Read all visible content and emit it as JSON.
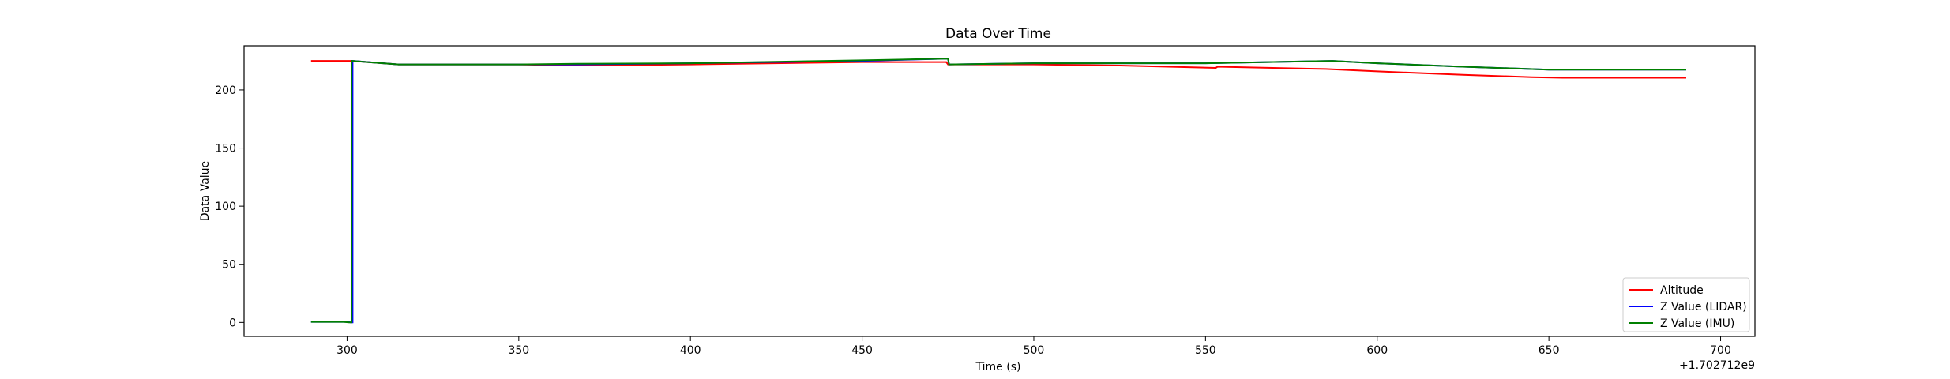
{
  "chart_data": {
    "type": "line",
    "title": "Data Over Time",
    "xlabel": "Time (s)",
    "ylabel": "Data Value",
    "x_offset_label": "+1.702712e9",
    "xlim": [
      270,
      710
    ],
    "ylim": [
      -12,
      238
    ],
    "x_ticks": [
      300,
      350,
      400,
      450,
      500,
      550,
      600,
      650,
      700
    ],
    "x_tick_labels": [
      "300",
      "350",
      "400",
      "450",
      "500",
      "550",
      "600",
      "650",
      "700"
    ],
    "y_ticks": [
      0,
      50,
      100,
      150,
      200
    ],
    "y_tick_labels": [
      "0",
      "50",
      "100",
      "150",
      "200"
    ],
    "grid": false,
    "legend_position": "lower-right",
    "series": [
      {
        "name": "Altitude",
        "color": "#ff0000",
        "points": [
          [
            289.5,
            225
          ],
          [
            301.5,
            225
          ],
          [
            315,
            222
          ],
          [
            350,
            222
          ],
          [
            367,
            221
          ],
          [
            400,
            222
          ],
          [
            450,
            224
          ],
          [
            474.5,
            224
          ],
          [
            475,
            222
          ],
          [
            500,
            222
          ],
          [
            525,
            221
          ],
          [
            553,
            219
          ],
          [
            553.5,
            220
          ],
          [
            585,
            218
          ],
          [
            600,
            216
          ],
          [
            625,
            213
          ],
          [
            645,
            211
          ],
          [
            654,
            210.5
          ],
          [
            675,
            210.5
          ],
          [
            690,
            210.5
          ]
        ]
      },
      {
        "name": "Z Value (LIDAR)",
        "color": "#0000ff",
        "points": [
          [
            289.5,
            0.5
          ],
          [
            300,
            0.5
          ],
          [
            301,
            0
          ],
          [
            301.6,
            0
          ],
          [
            301.6,
            225
          ],
          [
            315,
            222
          ],
          [
            350,
            222
          ],
          [
            367,
            222
          ],
          [
            400,
            223
          ],
          [
            450,
            225
          ],
          [
            475,
            227
          ],
          [
            475.3,
            222
          ],
          [
            500,
            223
          ],
          [
            550,
            223
          ],
          [
            587,
            225
          ],
          [
            600,
            223
          ],
          [
            625,
            220
          ],
          [
            650,
            217.5
          ],
          [
            690,
            217.5
          ]
        ]
      },
      {
        "name": "Z Value (IMU)",
        "color": "#008000",
        "points": [
          [
            289.5,
            0.5
          ],
          [
            299,
            0.5
          ],
          [
            300.5,
            0
          ],
          [
            301.3,
            0
          ],
          [
            301.3,
            225
          ],
          [
            315,
            222
          ],
          [
            350,
            222
          ],
          [
            367,
            222.5
          ],
          [
            400,
            223
          ],
          [
            450,
            225.5
          ],
          [
            475,
            227
          ],
          [
            475.3,
            222
          ],
          [
            500,
            223
          ],
          [
            550,
            223
          ],
          [
            587,
            225
          ],
          [
            600,
            223
          ],
          [
            625,
            220
          ],
          [
            650,
            217.5
          ],
          [
            690,
            217.5
          ]
        ]
      }
    ]
  }
}
